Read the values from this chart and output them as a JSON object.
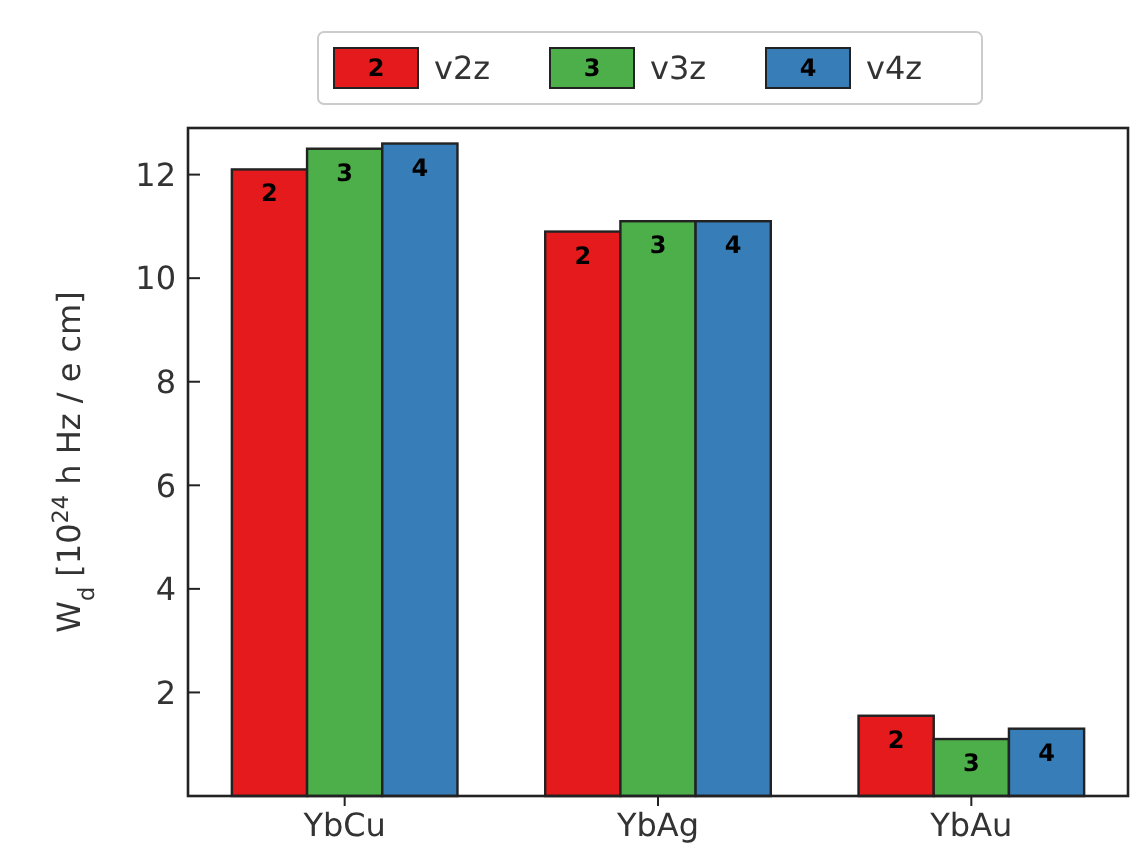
{
  "chart_data": {
    "type": "bar",
    "ylabel": "W$_{d}$ [10$^{24}$ h Hz / e cm]",
    "categories": [
      "YbCu",
      "YbAg",
      "YbAu"
    ],
    "series": [
      {
        "name": "v2z",
        "color": "#e41a1c",
        "values": [
          12.1,
          10.9,
          1.55
        ]
      },
      {
        "name": "v3z",
        "color": "#4daf4a",
        "values": [
          12.5,
          11.1,
          1.1
        ]
      },
      {
        "name": "v4z",
        "color": "#377eb8",
        "values": [
          12.6,
          11.1,
          1.3
        ]
      }
    ],
    "ylim": [
      0,
      12.9
    ],
    "yticks": [
      2,
      4,
      6,
      8,
      10,
      12
    ],
    "grid": false,
    "legend": "top",
    "annotations": [
      "2",
      "3",
      "4",
      "2",
      "3",
      "4",
      "2",
      "3",
      "4"
    ]
  }
}
